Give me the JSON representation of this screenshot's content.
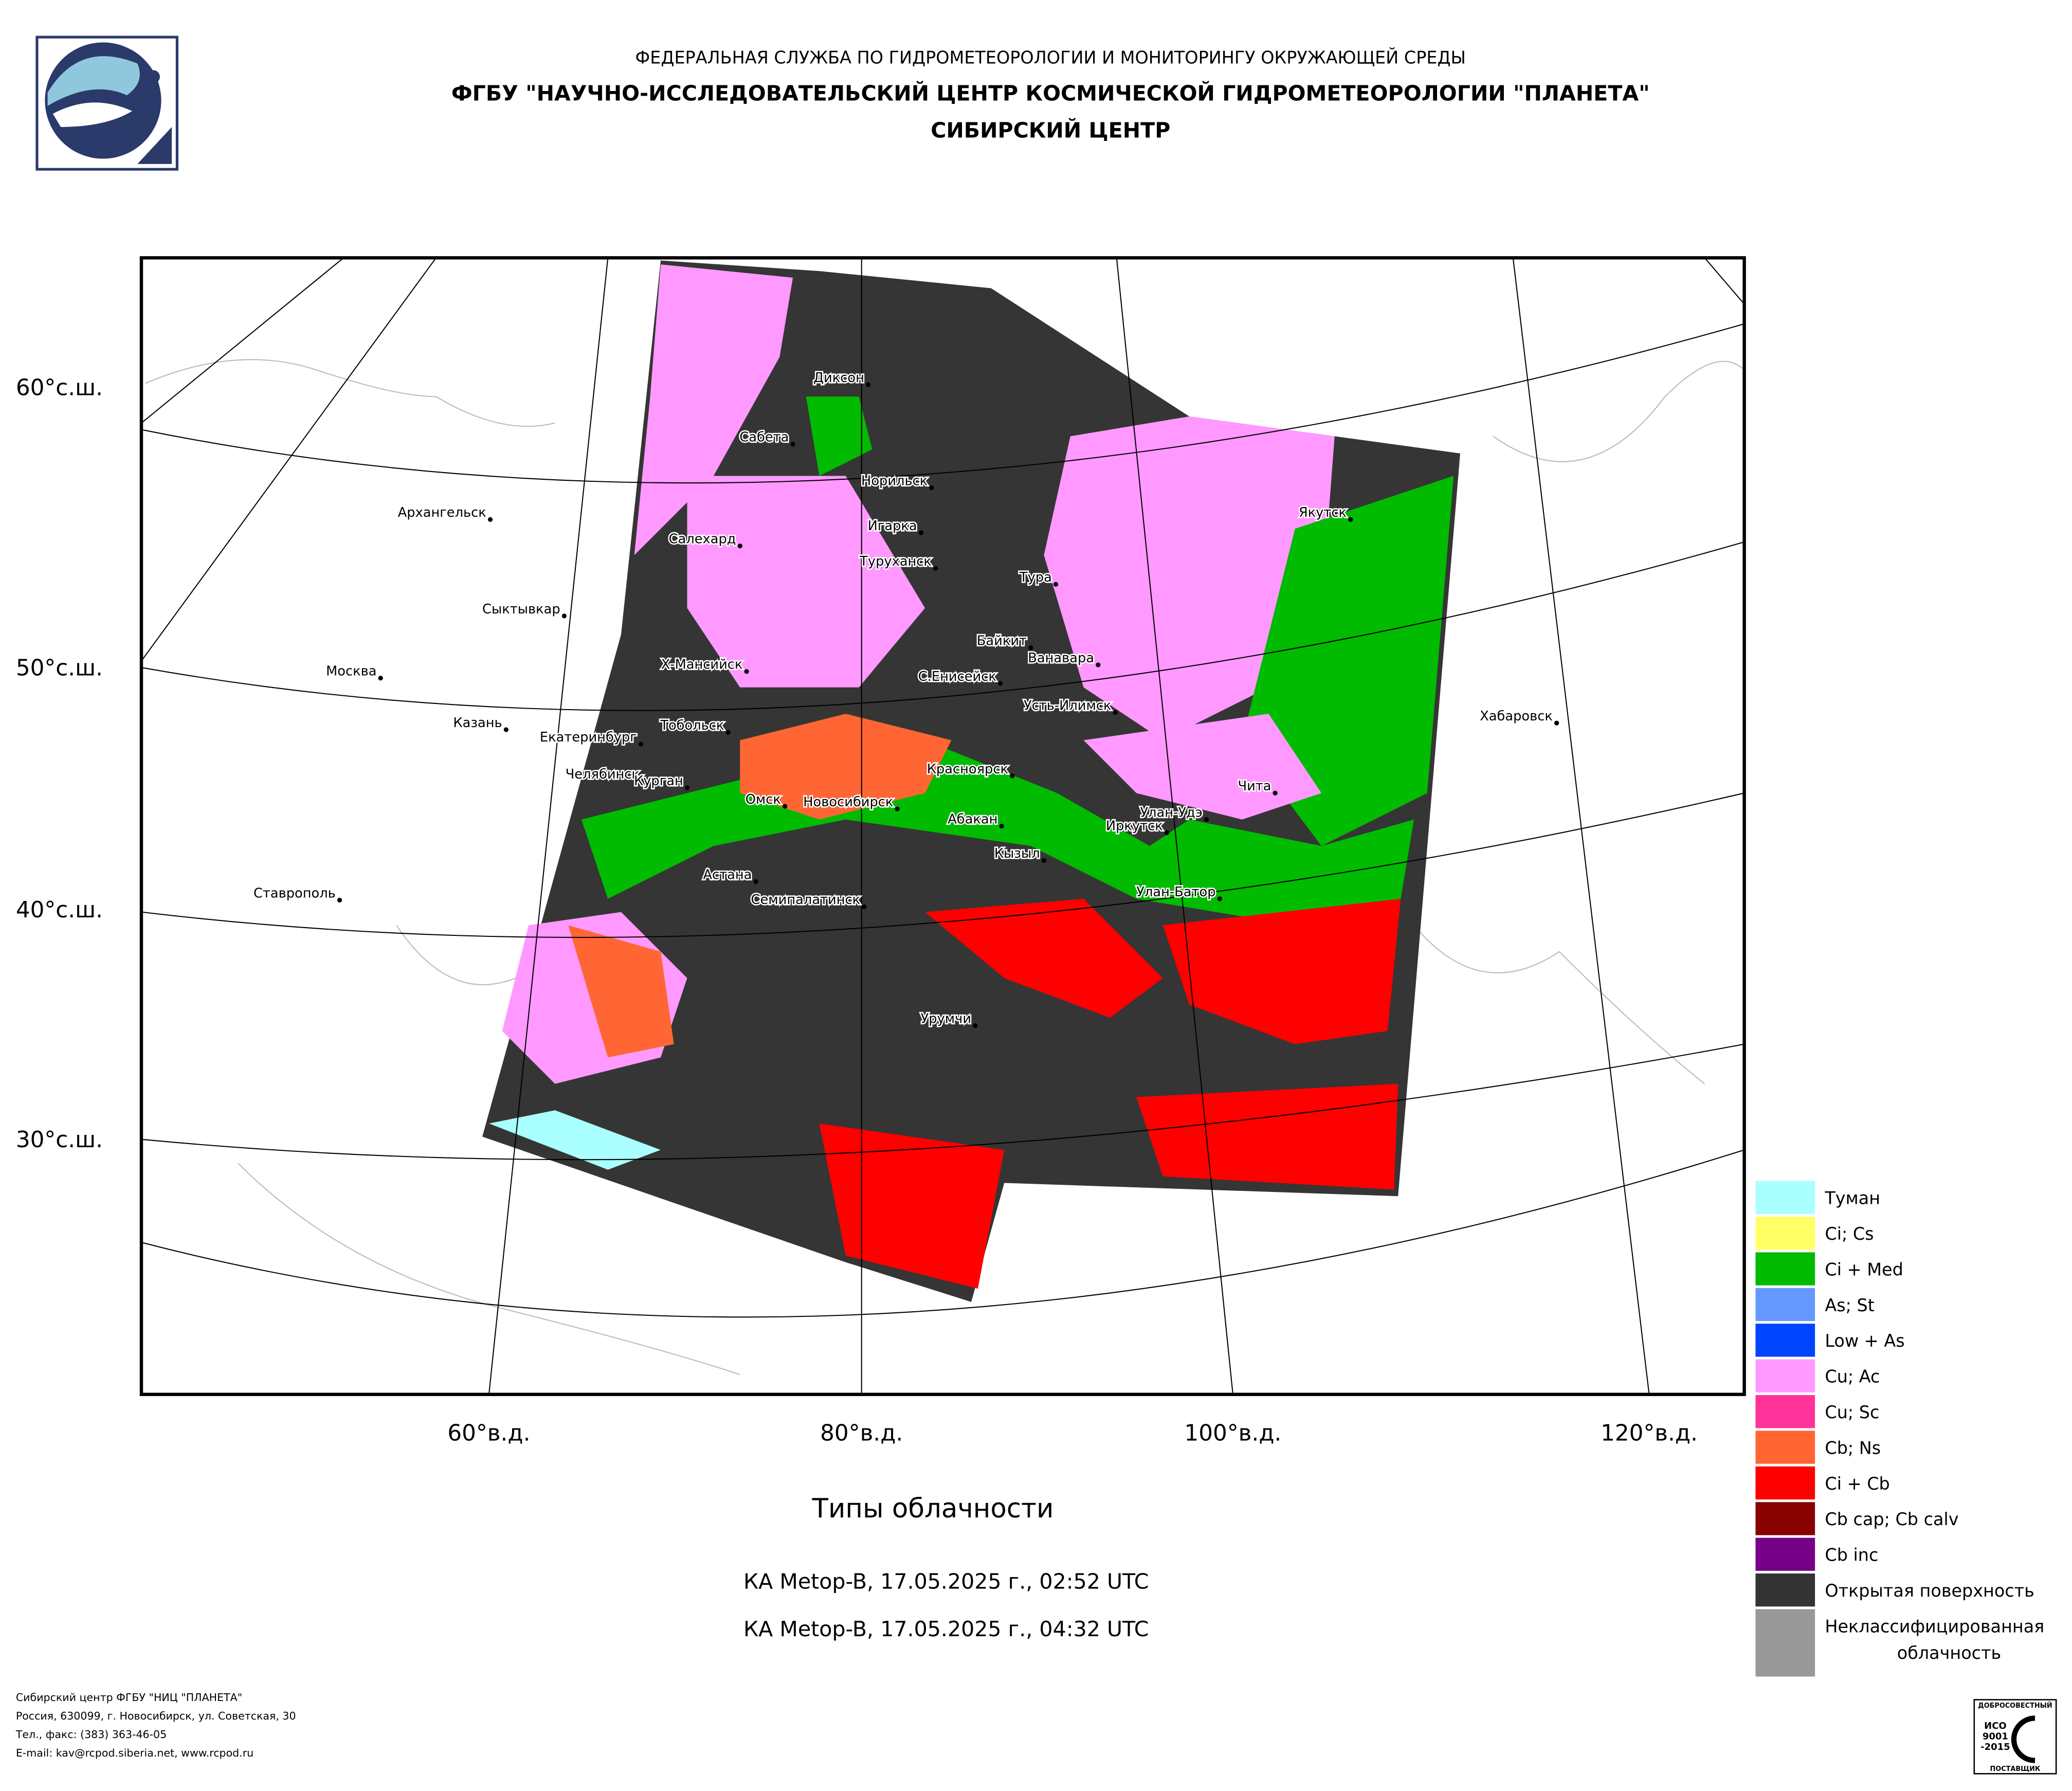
{
  "header": {
    "lines": [
      "ФЕДЕРАЛЬНАЯ СЛУЖБА ПО ГИДРОМЕТЕОРОЛОГИИ И МОНИТОРИНГУ ОКРУЖАЮЩЕЙ СРЕДЫ",
      "ФГБУ \"НАУЧНО-ИССЛЕДОВАТЕЛЬСКИЙ ЦЕНТР КОСМИЧЕСКОЙ ГИДРОМЕТЕОРОЛОГИИ \"ПЛАНЕТА\"",
      "СИБИРСКИЙ ЦЕНТР"
    ]
  },
  "map": {
    "latitude_labels": [
      "60°с.ш.",
      "50°с.ш.",
      "40°с.ш.",
      "30°с.ш."
    ],
    "longitude_labels": [
      "60°в.д.",
      "80°в.д.",
      "100°в.д.",
      "120°в.д."
    ],
    "cities": [
      "Диксон",
      "Сабета",
      "Норильск",
      "Архангельск",
      "Игарка",
      "Салехард",
      "Якутск",
      "Туруханск",
      "Тура",
      "Сыктывкар",
      "Байкит",
      "Ванавара",
      "Х-Мансийск",
      "Москва",
      "С.Енисейск",
      "Усть-Илимск",
      "Хабаровск",
      "Казань",
      "Тобольск",
      "Екатеринбург",
      "Красноярск",
      "Челябинск",
      "Чита",
      "Курган",
      "Омск",
      "Новосибирск",
      "Улан-Удэ",
      "Абакан",
      "Иркутск",
      "Кызыл",
      "Астана",
      "Семипалатинск",
      "Улан-Батор",
      "Ставрополь",
      "Урумчи"
    ]
  },
  "legend": {
    "items": [
      {
        "label": "Туман",
        "color": "#aaffff"
      },
      {
        "label": "Ci; Cs",
        "color": "#ffff66"
      },
      {
        "label": "Ci + Med",
        "color": "#00bb00"
      },
      {
        "label": "As; St",
        "color": "#6699ff"
      },
      {
        "label": "Low + As",
        "color": "#0044ff"
      },
      {
        "label": "Cu; Ac",
        "color": "#ff99ff"
      },
      {
        "label": "Cu; Sc",
        "color": "#ff3399"
      },
      {
        "label": "Cb; Ns",
        "color": "#ff6633"
      },
      {
        "label": "Ci + Cb",
        "color": "#ff0000"
      },
      {
        "label": "Cb cap; Cb calv",
        "color": "#880000"
      },
      {
        "label": "Cb inc",
        "color": "#770088"
      },
      {
        "label": "Открытая поверхность",
        "color": "#333333"
      },
      {
        "label": [
          "Неклассифицированная",
          "облачность"
        ],
        "color": "#999999"
      }
    ]
  },
  "caption": {
    "title": "Типы облачности",
    "passes": [
      "КА Metop-B, 17.05.2025 г., 02:52 UTC",
      "КА Metop-B, 17.05.2025 г., 04:32 UTC"
    ]
  },
  "footer": {
    "lines": [
      "Сибирский центр ФГБУ \"НИЦ \"ПЛАНЕТА\"",
      "Россия, 630099, г. Новосибирск, ул. Советская, 30",
      "Тел., факс: (383) 363-46-05",
      "E-mail: kav@rcpod.siberia.net, www.rcpod.ru"
    ]
  },
  "certificate": {
    "texts": [
      "ДОБРОСОВЕСТНЫЙ",
      "ИСО",
      "9001",
      "-2015",
      "ПОСТАВЩИК"
    ]
  }
}
